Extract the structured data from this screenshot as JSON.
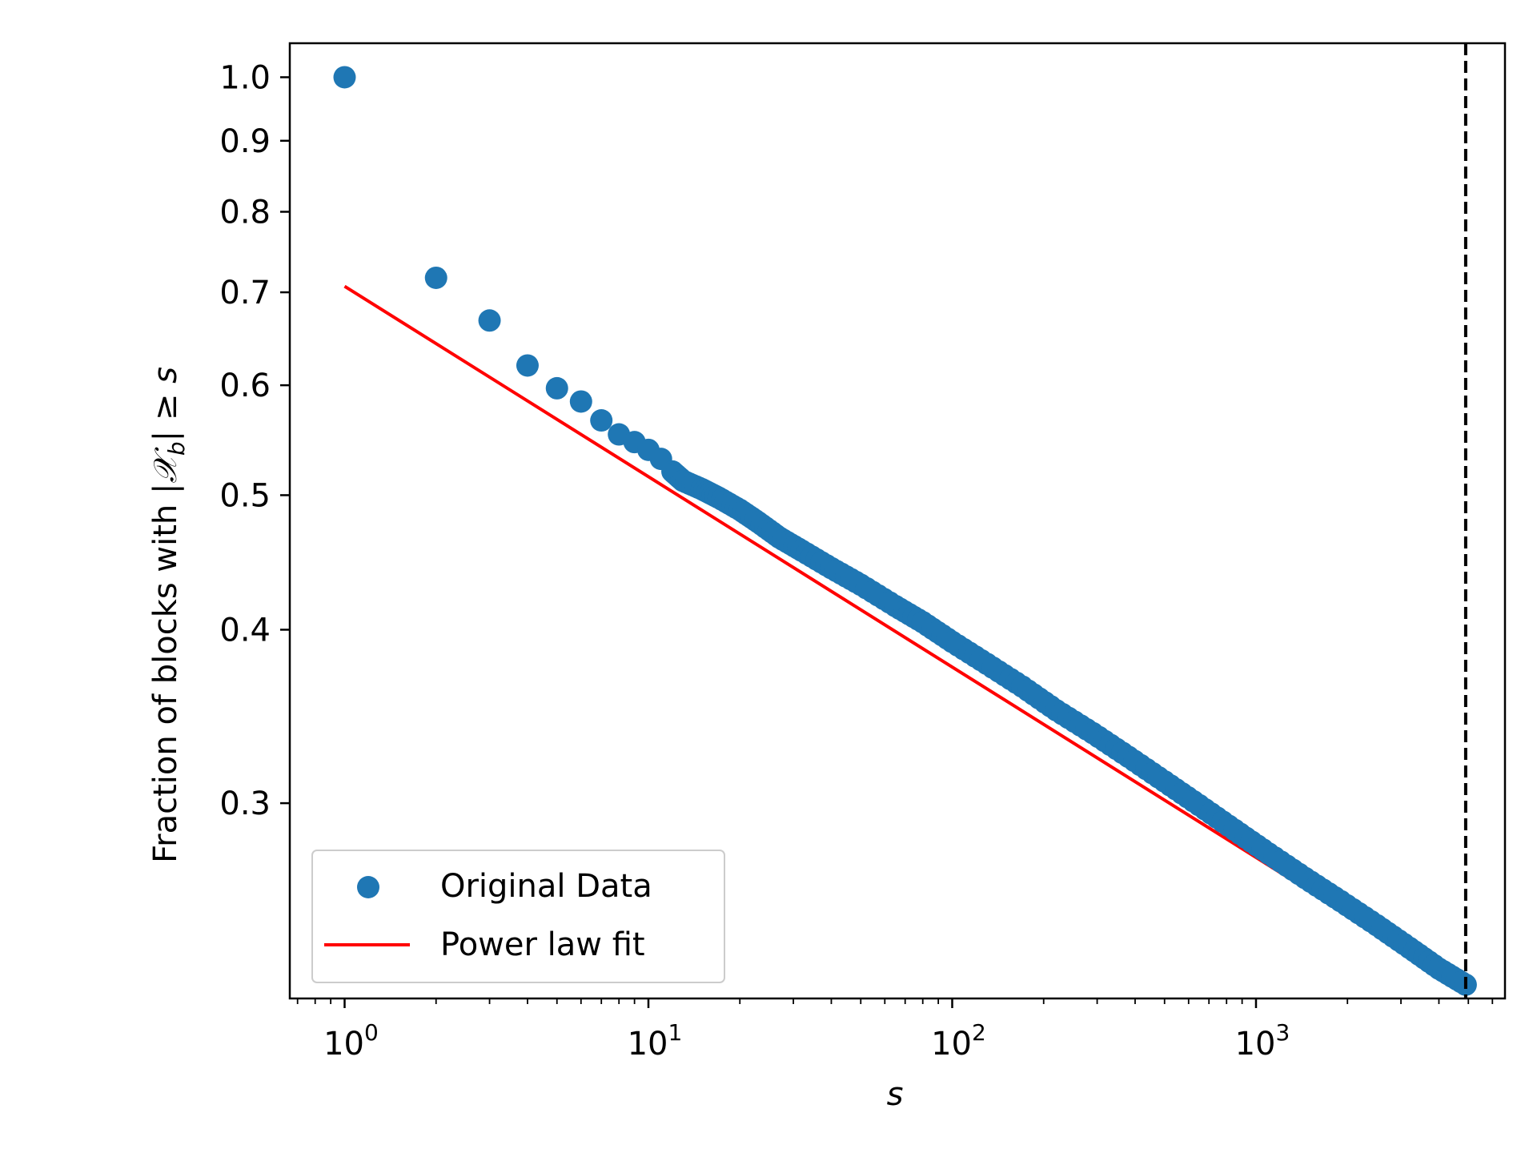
{
  "chart_data": {
    "type": "scatter",
    "title": "",
    "xlabel": "s",
    "ylabel": "Fraction of blocks with |𝒳_b| ≥ s",
    "ylabel_parts": {
      "prefix": "Fraction of blocks with |",
      "symbol": "𝒳",
      "subscript": "b",
      "suffix": "| ≥ ",
      "variable": "s"
    },
    "xscale": "log",
    "yscale": "log",
    "xlim": [
      0.66,
      6600
    ],
    "ylim": [
      0.217,
      1.058
    ],
    "x_ticks": [
      {
        "value": 1,
        "base": "10",
        "exp": "0"
      },
      {
        "value": 10,
        "base": "10",
        "exp": "1"
      },
      {
        "value": 100,
        "base": "10",
        "exp": "2"
      },
      {
        "value": 1000,
        "base": "10",
        "exp": "3"
      }
    ],
    "y_ticks": [
      {
        "value": 1.0,
        "label": "1.0"
      },
      {
        "value": 0.9,
        "label": "0.9"
      },
      {
        "value": 0.8,
        "label": "0.8"
      },
      {
        "value": 0.7,
        "label": "0.7"
      },
      {
        "value": 0.6,
        "label": "0.6"
      },
      {
        "value": 0.5,
        "label": "0.5"
      },
      {
        "value": 0.4,
        "label": "0.4"
      },
      {
        "value": 0.3,
        "label": "0.3"
      }
    ],
    "series": [
      {
        "name": "Original Data",
        "kind": "scatter",
        "color": "#1f77b4",
        "points": [
          [
            1,
            1.0
          ],
          [
            2,
            0.717
          ],
          [
            3,
            0.668
          ],
          [
            4,
            0.62
          ],
          [
            5,
            0.597
          ],
          [
            6,
            0.584
          ],
          [
            7,
            0.566
          ],
          [
            8,
            0.553
          ],
          [
            9,
            0.546
          ],
          [
            10,
            0.539
          ],
          [
            11,
            0.531
          ],
          [
            12,
            0.52
          ],
          [
            13,
            0.512
          ],
          [
            15,
            0.505
          ],
          [
            17,
            0.498
          ],
          [
            20,
            0.488
          ],
          [
            23,
            0.478
          ],
          [
            27,
            0.466
          ],
          [
            32,
            0.456
          ],
          [
            40,
            0.443
          ],
          [
            50,
            0.431
          ],
          [
            65,
            0.416
          ],
          [
            80,
            0.405
          ],
          [
            100,
            0.392
          ],
          [
            130,
            0.378
          ],
          [
            170,
            0.364
          ],
          [
            220,
            0.35
          ],
          [
            290,
            0.337
          ],
          [
            380,
            0.324
          ],
          [
            500,
            0.311
          ],
          [
            650,
            0.299
          ],
          [
            850,
            0.287
          ],
          [
            1100,
            0.276
          ],
          [
            1450,
            0.265
          ],
          [
            1900,
            0.255
          ],
          [
            2500,
            0.245
          ],
          [
            3200,
            0.236
          ],
          [
            4000,
            0.228
          ],
          [
            4900,
            0.222
          ]
        ]
      },
      {
        "name": "Power law fit",
        "kind": "line",
        "color": "#ff0000",
        "x": [
          1,
          4900
        ],
        "y": [
          0.707,
          0.2205
        ]
      }
    ],
    "vertical_lines": [
      {
        "x": 4900,
        "style": "dashed",
        "color": "#000000"
      }
    ],
    "legend": {
      "location": "lower-left",
      "entries": [
        {
          "label": "Original Data",
          "marker": "circle",
          "color": "#1f77b4"
        },
        {
          "label": "Power law fit",
          "marker": "line",
          "color": "#ff0000"
        }
      ]
    }
  }
}
